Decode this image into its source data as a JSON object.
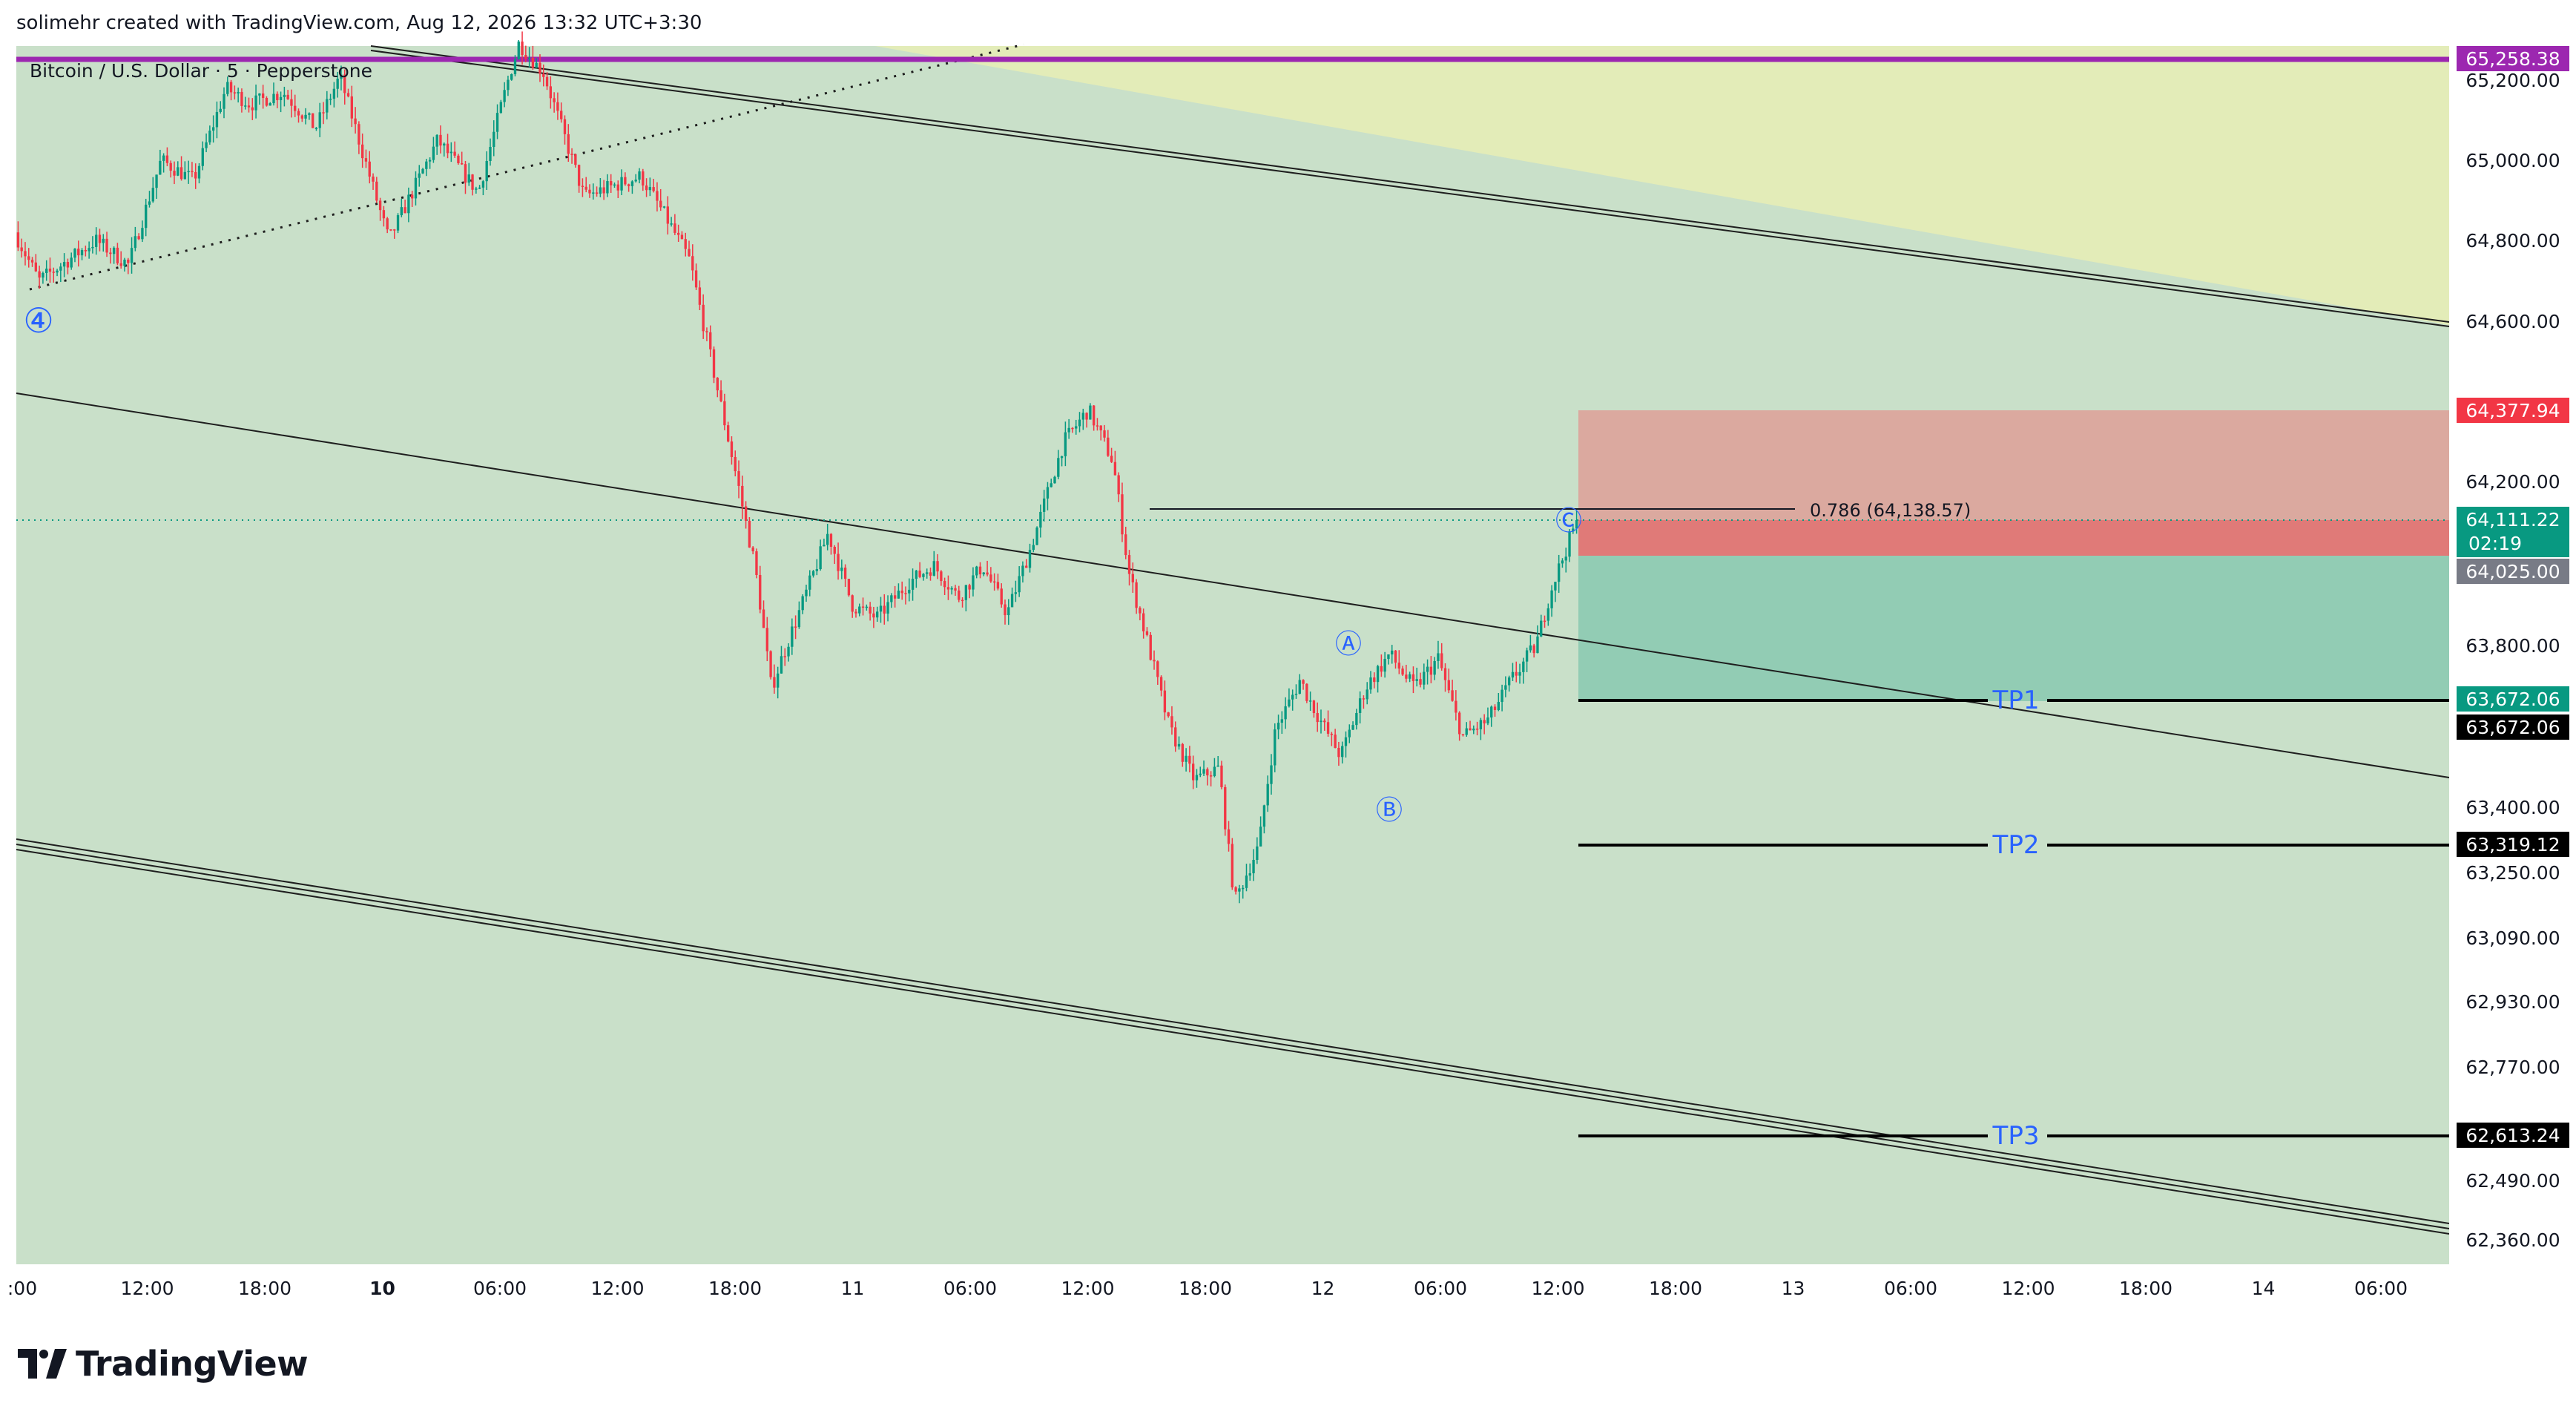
{
  "header": {
    "text": "solimehr created with TradingView.com, Aug 12, 2026 13:32 UTC+3:30"
  },
  "symbol": {
    "text": "Bitcoin / U.S. Dollar · 5 · Pepperstone"
  },
  "brand": {
    "name": "TradingView"
  },
  "colors": {
    "chart_bg": "#c9e0c9",
    "yellow_zone": "#e3ecb8",
    "stop_zone": "#dba99f",
    "stop_zone_dark": "#e07a78",
    "target_zone": "#92ccb4",
    "candle_up": "#089981",
    "candle_down": "#f23645",
    "purple_line": "#9c27b0",
    "wave_label": "#2962ff",
    "tp_text": "#2962ff",
    "badge_red": "#f23645",
    "badge_teal": "#089981",
    "badge_gray": "#787b86",
    "badge_black": "#000000",
    "badge_purple": "#9c27b0"
  },
  "chart_data": {
    "type": "candlestick",
    "symbol": "Bitcoin / U.S. Dollar",
    "interval": "5",
    "exchange": "Pepperstone",
    "y_axis": {
      "ylim": [
        62300,
        65320
      ],
      "ticks": [
        "65,200.00",
        "65,000.00",
        "64,800.00",
        "64,600.00",
        "64,200.00",
        "63,800.00",
        "63,400.00",
        "63,250.00",
        "63,090.00",
        "62,930.00",
        "62,770.00",
        "62,490.00",
        "62,360.00"
      ],
      "tick_values": [
        65200,
        65000,
        64800,
        64600,
        64200,
        63800,
        63400,
        63250,
        63090,
        62930,
        62770,
        62490,
        62360
      ]
    },
    "x_axis": {
      "labels": [
        ":00",
        "12:00",
        "18:00",
        "10",
        "06:00",
        "12:00",
        "18:00",
        "11",
        "06:00",
        "12:00",
        "18:00",
        "12",
        "06:00",
        "12:00",
        "18:00",
        "13",
        "06:00",
        "12:00",
        "18:00",
        "14",
        "06:00"
      ],
      "bold_labels": [
        "10"
      ]
    },
    "price_path_anchors": [
      {
        "x": 0.0,
        "y": 64820
      },
      {
        "x": 0.015,
        "y": 64700
      },
      {
        "x": 0.05,
        "y": 64800
      },
      {
        "x": 0.07,
        "y": 64740
      },
      {
        "x": 0.09,
        "y": 65000
      },
      {
        "x": 0.11,
        "y": 64950
      },
      {
        "x": 0.13,
        "y": 65180
      },
      {
        "x": 0.145,
        "y": 65140
      },
      {
        "x": 0.165,
        "y": 65170
      },
      {
        "x": 0.185,
        "y": 65080
      },
      {
        "x": 0.2,
        "y": 65210
      },
      {
        "x": 0.23,
        "y": 64800
      },
      {
        "x": 0.26,
        "y": 65050
      },
      {
        "x": 0.285,
        "y": 64920
      },
      {
        "x": 0.3,
        "y": 65150
      },
      {
        "x": 0.31,
        "y": 65300
      },
      {
        "x": 0.325,
        "y": 65220
      },
      {
        "x": 0.35,
        "y": 64910
      },
      {
        "x": 0.385,
        "y": 64960
      },
      {
        "x": 0.4,
        "y": 64860
      },
      {
        "x": 0.415,
        "y": 64750
      },
      {
        "x": 0.44,
        "y": 64280
      },
      {
        "x": 0.455,
        "y": 64000
      },
      {
        "x": 0.465,
        "y": 63700
      },
      {
        "x": 0.48,
        "y": 63860
      },
      {
        "x": 0.5,
        "y": 64080
      },
      {
        "x": 0.515,
        "y": 63900
      },
      {
        "x": 0.53,
        "y": 63870
      },
      {
        "x": 0.55,
        "y": 63960
      },
      {
        "x": 0.565,
        "y": 64000
      },
      {
        "x": 0.58,
        "y": 63920
      },
      {
        "x": 0.595,
        "y": 64000
      },
      {
        "x": 0.61,
        "y": 63880
      },
      {
        "x": 0.625,
        "y": 64050
      },
      {
        "x": 0.645,
        "y": 64300
      },
      {
        "x": 0.66,
        "y": 64380
      },
      {
        "x": 0.675,
        "y": 64250
      },
      {
        "x": 0.685,
        "y": 63980
      },
      {
        "x": 0.71,
        "y": 63600
      },
      {
        "x": 0.725,
        "y": 63470
      },
      {
        "x": 0.74,
        "y": 63500
      },
      {
        "x": 0.75,
        "y": 63180
      },
      {
        "x": 0.765,
        "y": 63320
      },
      {
        "x": 0.775,
        "y": 63600
      },
      {
        "x": 0.79,
        "y": 63720
      },
      {
        "x": 0.8,
        "y": 63640
      },
      {
        "x": 0.815,
        "y": 63530
      },
      {
        "x": 0.83,
        "y": 63700
      },
      {
        "x": 0.845,
        "y": 63780
      },
      {
        "x": 0.86,
        "y": 63700
      },
      {
        "x": 0.875,
        "y": 63770
      },
      {
        "x": 0.89,
        "y": 63580
      },
      {
        "x": 0.905,
        "y": 63620
      },
      {
        "x": 0.92,
        "y": 63720
      },
      {
        "x": 0.935,
        "y": 63800
      },
      {
        "x": 0.945,
        "y": 63950
      },
      {
        "x": 0.96,
        "y": 64111
      }
    ],
    "horizontal_levels": [
      {
        "name": "purple-level",
        "value": 65258.38,
        "label": "65,258.38"
      },
      {
        "name": "stop-loss",
        "value": 64377.94,
        "label": "64,377.94"
      },
      {
        "name": "current-price",
        "value": 64111.22,
        "label": "64,111.22",
        "countdown": "02:19"
      },
      {
        "name": "entry",
        "value": 64025.0,
        "label": "64,025.00"
      },
      {
        "name": "tp1-target",
        "value": 63672.06,
        "label": "63,672.06"
      },
      {
        "name": "tp1",
        "value": 63672.06,
        "label": "63,672.06",
        "text": "TP1"
      },
      {
        "name": "tp2",
        "value": 63319.12,
        "label": "63,319.12",
        "text": "TP2"
      },
      {
        "name": "tp3",
        "value": 62613.24,
        "label": "62,613.24",
        "text": "TP3"
      }
    ],
    "fib_annotation": {
      "text": "0.786 (64,138.57)",
      "value": 64138.57
    },
    "wave_labels": [
      "④",
      "Ⓐ",
      "Ⓑ",
      "Ⓒ"
    ]
  }
}
